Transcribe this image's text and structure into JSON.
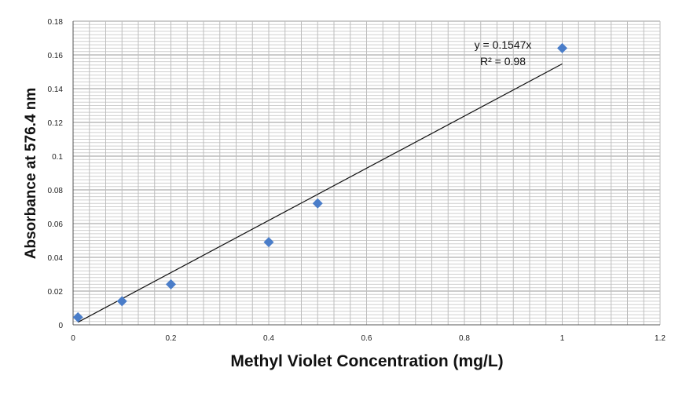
{
  "chart_data": {
    "type": "scatter",
    "title": "",
    "xlabel": "Methyl Violet Concentration (mg/L)",
    "ylabel": "Absorbance at 576.4 nm",
    "xlim": [
      0,
      1.2
    ],
    "ylim": [
      0,
      0.18
    ],
    "x_ticks": [
      "0",
      "0.2",
      "0.4",
      "0.6",
      "0.8",
      "1",
      "1.2"
    ],
    "y_ticks": [
      "0",
      "0.02",
      "0.04",
      "0.06",
      "0.08",
      "0.1",
      "0.12",
      "0.14",
      "0.16",
      "0.18"
    ],
    "grid": true,
    "legend": "none",
    "marker": "diamond",
    "marker_color": "#4a7dc9",
    "series": [
      {
        "x": [
          0.01,
          0.1,
          0.2,
          0.4,
          0.5,
          1.0
        ],
        "y": [
          0.0045,
          0.014,
          0.024,
          0.049,
          0.072,
          0.164
        ]
      }
    ],
    "trendline": {
      "type": "linear",
      "slope": 0.1547,
      "x_range": [
        0.01,
        1.0
      ],
      "equation": "y = 0.1547x",
      "r_squared": "R² = 0.98"
    }
  }
}
